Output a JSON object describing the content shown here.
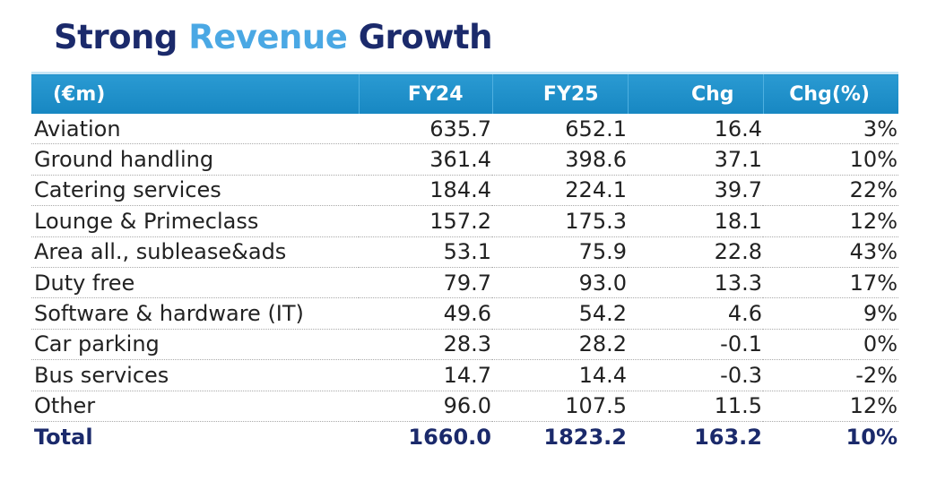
{
  "header": {
    "title": [
      "Strong",
      "Revenue",
      "Growth"
    ]
  },
  "table": {
    "columns": [
      "(€m)",
      "FY24",
      "FY25",
      "Chg",
      "Chg(%)"
    ],
    "rows": [
      [
        "Aviation",
        "635.7",
        "652.1",
        "16.4",
        "3%"
      ],
      [
        "Ground handling",
        "361.4",
        "398.6",
        "37.1",
        "10%"
      ],
      [
        "Catering services",
        "184.4",
        "224.1",
        "39.7",
        "22%"
      ],
      [
        "Lounge & Primeclass",
        "157.2",
        "175.3",
        "18.1",
        "12%"
      ],
      [
        "Area all., sublease&ads",
        "53.1",
        "75.9",
        "22.8",
        "43%"
      ],
      [
        "Duty free",
        "79.7",
        "93.0",
        "13.3",
        "17%"
      ],
      [
        "Software & hardware (IT)",
        "49.6",
        "54.2",
        "4.6",
        "9%"
      ],
      [
        "Car parking",
        "28.3",
        "28.2",
        "-0.1",
        "0%"
      ],
      [
        "Bus services",
        "14.7",
        "14.4",
        "-0.3",
        "-2%"
      ],
      [
        "Other",
        "96.0",
        "107.5",
        "11.5",
        "12%"
      ]
    ],
    "total": [
      "Total",
      "1660.0",
      "1823.2",
      "163.2",
      "10%"
    ]
  }
}
